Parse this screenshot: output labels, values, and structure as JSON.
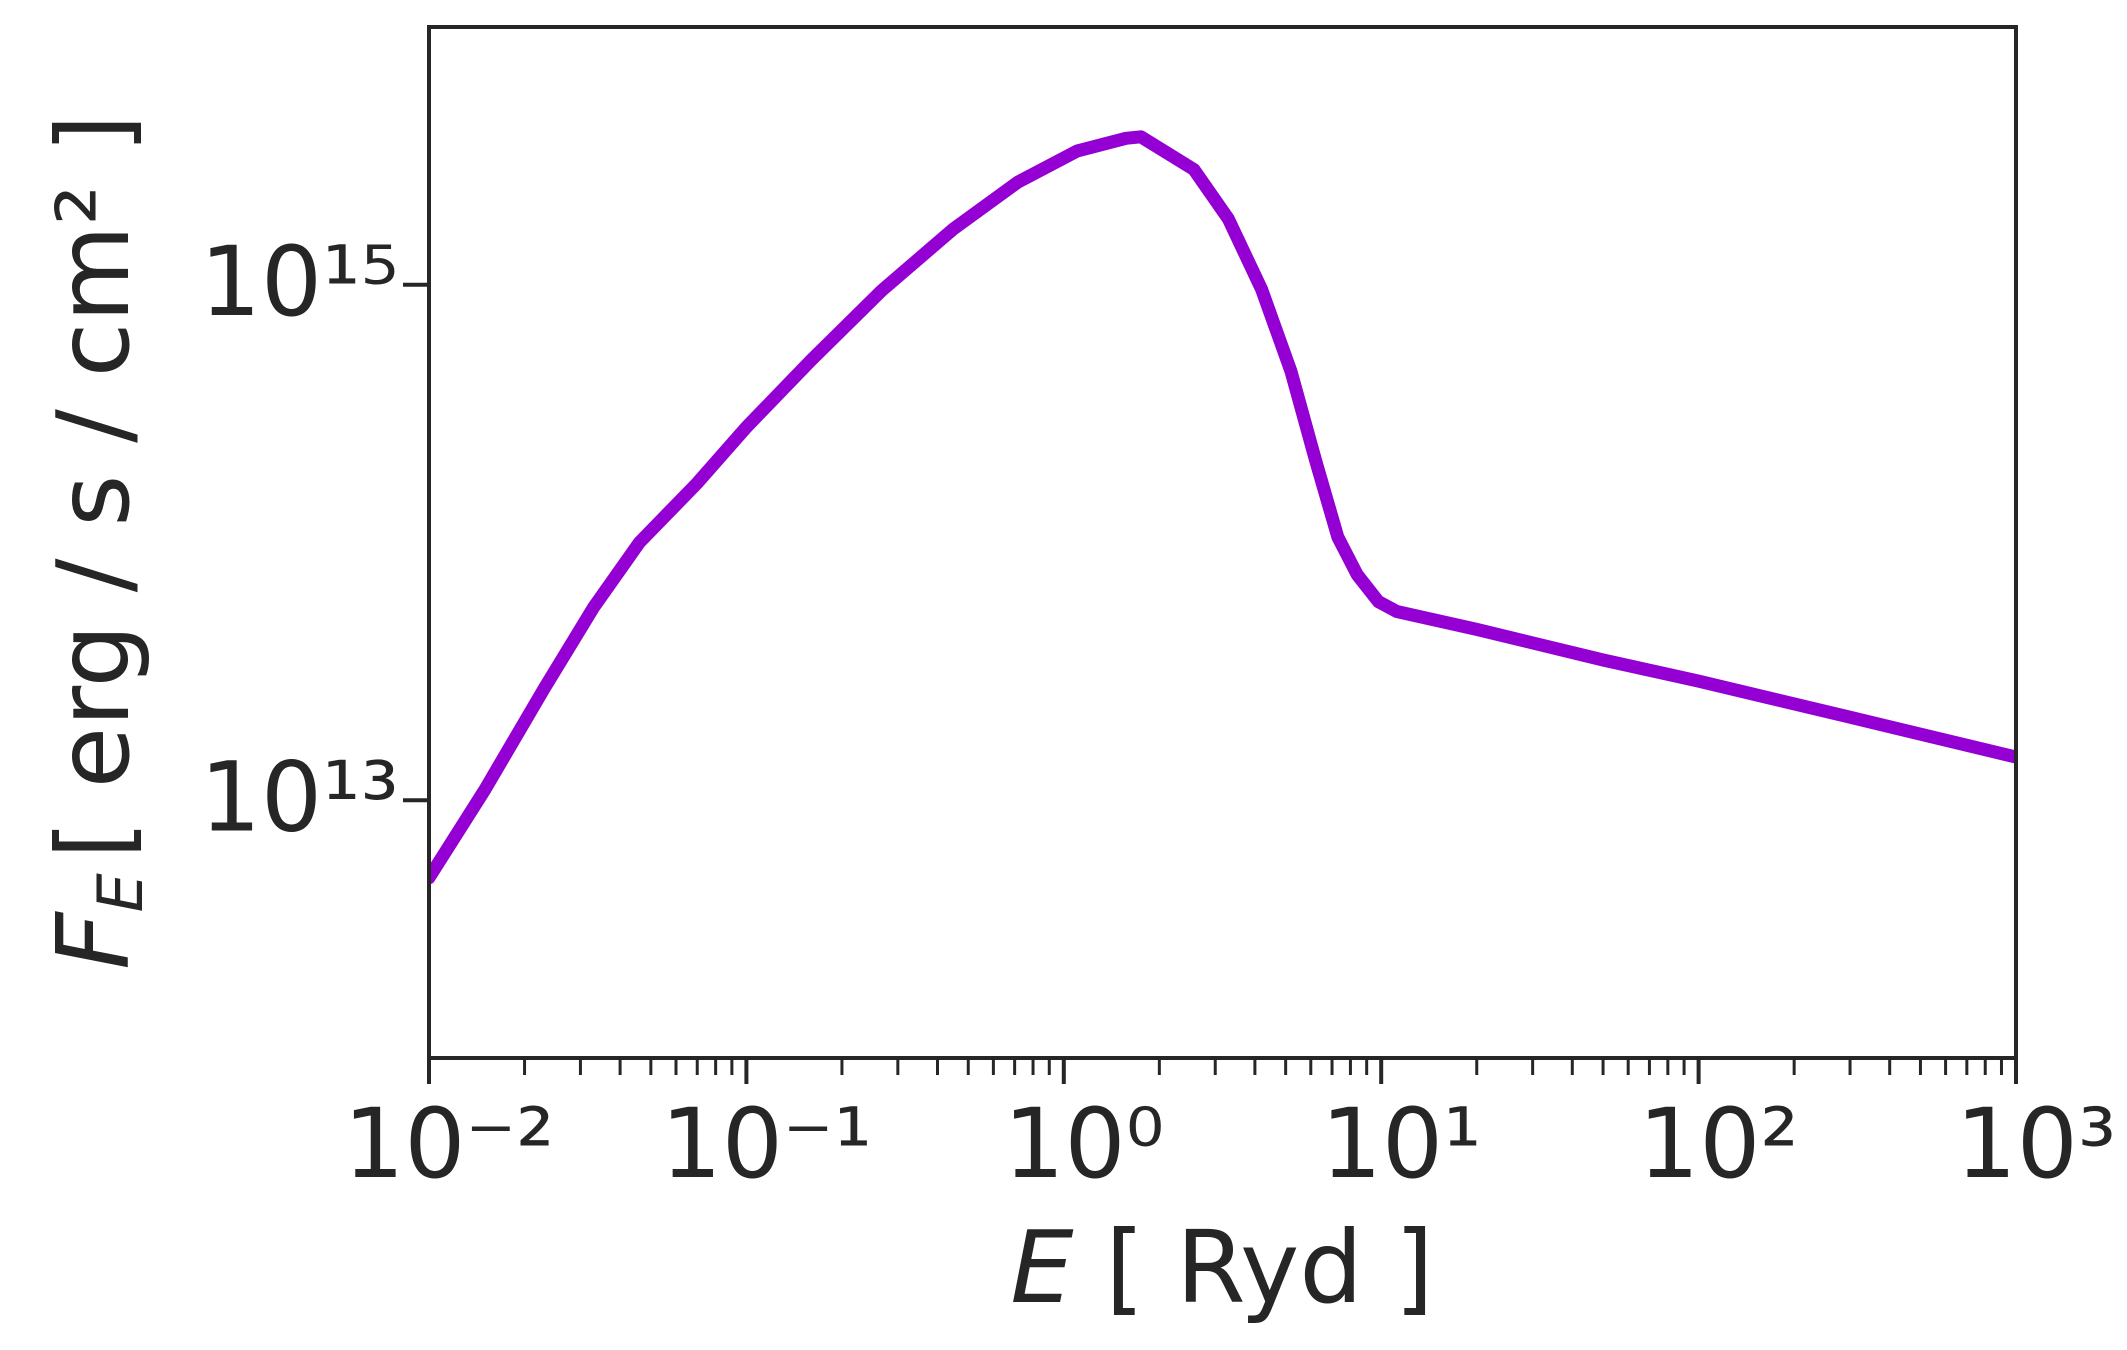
{
  "chart_data": {
    "type": "line",
    "xlabel": {
      "symbol": "E",
      "unit": "[ Ryd ]"
    },
    "ylabel": {
      "symbol": "F",
      "subscript": "E",
      "unit": "[ erg / s / cm² ]"
    },
    "xscale": "log",
    "yscale": "log",
    "xlim": [
      0.01,
      1000
    ],
    "ylim": [
      1000000000000.0,
      1e+16
    ],
    "xticks": [
      {
        "value": 0.01,
        "label": "10⁻²"
      },
      {
        "value": 0.1,
        "label": "10⁻¹"
      },
      {
        "value": 1,
        "label": "10⁰"
      },
      {
        "value": 10,
        "label": "10¹"
      },
      {
        "value": 100,
        "label": "10²"
      },
      {
        "value": 1000,
        "label": "10³"
      }
    ],
    "xminorticks": [
      0.02,
      0.03,
      0.04,
      0.05,
      0.06,
      0.07,
      0.08,
      0.09,
      0.2,
      0.3,
      0.4,
      0.5,
      0.6,
      0.7,
      0.8,
      0.9,
      2,
      3,
      4,
      5,
      6,
      7,
      8,
      9,
      20,
      30,
      40,
      50,
      60,
      70,
      80,
      90,
      200,
      300,
      400,
      500,
      600,
      700,
      800,
      900
    ],
    "yticks": [
      {
        "value": 10000000000000.0,
        "label": "10¹³"
      },
      {
        "value": 1000000000000000.0,
        "label": "10¹⁵"
      }
    ],
    "series": [
      {
        "color": "#9400d3",
        "x": [
          0.01,
          0.015,
          0.023,
          0.033,
          0.046,
          0.07,
          0.1,
          0.16,
          0.267,
          0.45,
          0.716,
          1.1,
          1.57,
          1.75,
          2.57,
          3.3,
          4.2,
          5.2,
          6.2,
          7.3,
          8.4,
          9.8,
          11.2,
          20,
          50,
          100,
          300,
          1000
        ],
        "y": [
          5000000000000.0,
          11000000000000.0,
          27000000000000.0,
          56000000000000.0,
          100000000000000.0,
          170000000000000.0,
          280000000000000.0,
          510000000000000.0,
          950000000000000.0,
          1650000000000000.0,
          2500000000000000.0,
          3300000000000000.0,
          3700000000000000.0,
          3750000000000000.0,
          2800000000000000.0,
          1800000000000000.0,
          960000000000000.0,
          460000000000000.0,
          210000000000000.0,
          105000000000000.0,
          75000000000000.0,
          59000000000000.0,
          54000000000000.0,
          46000000000000.0,
          35000000000000.0,
          29000000000000.0,
          21000000000000.0,
          14700000000000.0
        ]
      }
    ]
  }
}
